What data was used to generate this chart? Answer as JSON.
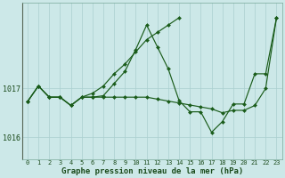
{
  "bg_color": "#cce8e8",
  "grid_color": "#aacfcf",
  "line_color": "#1a5c1a",
  "marker_color": "#1a5c1a",
  "xlabel": "Graphe pression niveau de la mer (hPa)",
  "ytick_vals": [
    1016.0,
    1017.0
  ],
  "ytick_labels": [
    "1016",
    "1017"
  ],
  "xlim": [
    -0.5,
    23.5
  ],
  "ylim": [
    1015.55,
    1018.75
  ],
  "hours": [
    0,
    1,
    2,
    3,
    4,
    5,
    6,
    7,
    8,
    9,
    10,
    11,
    12,
    13,
    14,
    15,
    16,
    17,
    18,
    19,
    20,
    21,
    22,
    23
  ],
  "series_jagged": [
    1016.73,
    1017.05,
    1016.82,
    1016.82,
    1016.65,
    1016.82,
    1016.82,
    1016.85,
    1017.1,
    1017.35,
    1017.8,
    1018.3,
    1017.85,
    1017.4,
    1016.75,
    1016.52,
    1016.52,
    1016.1,
    1016.32,
    1016.68,
    1016.68,
    1017.3,
    1017.3,
    1018.45
  ],
  "series_rising": [
    1016.73,
    1017.05,
    1016.82,
    1016.82,
    1016.65,
    1016.82,
    1016.9,
    1017.05,
    1017.3,
    1017.5,
    1017.75,
    1018.0,
    1018.15,
    1018.3,
    1018.45,
    null,
    null,
    null,
    null,
    null,
    null,
    null,
    null,
    null
  ],
  "series_flat": [
    1016.73,
    1017.05,
    1016.82,
    1016.82,
    1016.65,
    1016.82,
    1016.82,
    1016.82,
    1016.82,
    1016.82,
    1016.82,
    1016.82,
    1016.78,
    1016.74,
    1016.7,
    1016.66,
    1016.62,
    1016.58,
    1016.5,
    1016.55,
    1016.55,
    1016.65,
    1017.0,
    1018.45
  ],
  "xtick_labels": [
    "0",
    "1",
    "2",
    "3",
    "4",
    "5",
    "6",
    "7",
    "8",
    "9",
    "10",
    "11",
    "12",
    "13",
    "14",
    "15",
    "16",
    "17",
    "18",
    "19",
    "20",
    "21",
    "22",
    "23"
  ],
  "figsize": [
    3.2,
    2.0
  ],
  "dpi": 100
}
